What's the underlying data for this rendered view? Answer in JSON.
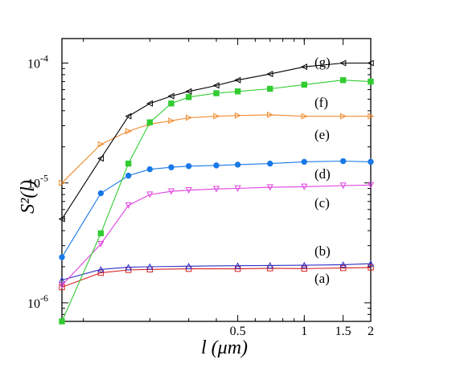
{
  "chart_data": {
    "type": "line",
    "title": "",
    "xlabel": "l (μm)",
    "ylabel": "S²(l)",
    "xscale": "log",
    "yscale": "log",
    "xlim": [
      0.08,
      2.0
    ],
    "ylim": [
      7e-07,
      0.00016
    ],
    "grid": false,
    "legend": "inline labels at right end of each curve",
    "xticks": [
      {
        "value": 0.5,
        "label": "0.5"
      },
      {
        "value": 1.0,
        "label": "1"
      },
      {
        "value": 1.5,
        "label": "1.5"
      },
      {
        "value": 2.0,
        "label": "2"
      }
    ],
    "yticks": [
      {
        "value": 1e-06,
        "label": "10",
        "exp": "-6"
      },
      {
        "value": 1e-05,
        "label": "10",
        "exp": "-5"
      },
      {
        "value": 0.0001,
        "label": "10",
        "exp": "-4"
      }
    ],
    "series": [
      {
        "name": "(a)",
        "color": "#d62020",
        "marker": "square",
        "x": [
          0.08,
          0.12,
          0.16,
          0.2,
          0.3,
          0.5,
          0.7,
          1.0,
          1.5,
          2.0
        ],
        "y": [
          1.35e-06,
          1.78e-06,
          1.88e-06,
          1.9e-06,
          1.92e-06,
          1.92e-06,
          1.94e-06,
          1.93e-06,
          1.95e-06,
          1.97e-06
        ]
      },
      {
        "name": "(b)",
        "color": "#3030c8",
        "marker": "triangle-up",
        "x": [
          0.08,
          0.12,
          0.16,
          0.2,
          0.3,
          0.5,
          0.7,
          1.0,
          1.5,
          2.0
        ],
        "y": [
          1.55e-06,
          1.9e-06,
          1.98e-06,
          2e-06,
          2.02e-06,
          2.04e-06,
          2.05e-06,
          2.06e-06,
          2.08e-06,
          2.12e-06
        ]
      },
      {
        "name": "(c)",
        "color": "#e040e0",
        "marker": "triangle-down",
        "x": [
          0.08,
          0.12,
          0.16,
          0.2,
          0.25,
          0.3,
          0.4,
          0.5,
          0.7,
          1.0,
          1.5,
          2.0
        ],
        "y": [
          1.4e-06,
          3.1e-06,
          6.5e-06,
          8e-06,
          8.5e-06,
          8.7e-06,
          8.9e-06,
          9e-06,
          9.2e-06,
          9.3e-06,
          9.5e-06,
          9.6e-06
        ]
      },
      {
        "name": "(d)",
        "color": "#1878e8",
        "marker": "circle",
        "x": [
          0.08,
          0.12,
          0.16,
          0.2,
          0.25,
          0.3,
          0.4,
          0.5,
          0.7,
          1.0,
          1.5,
          2.0
        ],
        "y": [
          2.4e-06,
          8.2e-06,
          1.15e-05,
          1.3e-05,
          1.35e-05,
          1.38e-05,
          1.4e-05,
          1.42e-05,
          1.45e-05,
          1.5e-05,
          1.52e-05,
          1.5e-05
        ]
      },
      {
        "name": "(e)",
        "color": "#f08c30",
        "marker": "triangle-right",
        "x": [
          0.08,
          0.12,
          0.16,
          0.2,
          0.25,
          0.3,
          0.4,
          0.5,
          0.7,
          1.0,
          1.5,
          2.0
        ],
        "y": [
          1e-05,
          2.1e-05,
          2.7e-05,
          3.1e-05,
          3.3e-05,
          3.5e-05,
          3.6e-05,
          3.65e-05,
          3.7e-05,
          3.6e-05,
          3.6e-05,
          3.6e-05
        ]
      },
      {
        "name": "(f)",
        "color": "#30cc30",
        "marker": "square",
        "x": [
          0.08,
          0.12,
          0.16,
          0.2,
          0.25,
          0.3,
          0.4,
          0.5,
          0.7,
          1.0,
          1.5,
          2.0
        ],
        "y": [
          7e-07,
          3.8e-06,
          1.45e-05,
          3.2e-05,
          4.6e-05,
          5.2e-05,
          5.6e-05,
          5.8e-05,
          6.1e-05,
          6.6e-05,
          7.2e-05,
          7e-05
        ]
      },
      {
        "name": "(g)",
        "color": "#000000",
        "marker": "triangle-left",
        "x": [
          0.08,
          0.12,
          0.16,
          0.2,
          0.25,
          0.3,
          0.4,
          0.5,
          0.7,
          1.0,
          1.5,
          2.0
        ],
        "y": [
          5e-06,
          1.6e-05,
          3.6e-05,
          4.6e-05,
          5.3e-05,
          5.8e-05,
          6.5e-05,
          7.2e-05,
          8.1e-05,
          9.3e-05,
          0.0001,
          0.0001
        ]
      }
    ],
    "curve_labels": [
      "(a)",
      "(b)",
      "(c)",
      "(d)",
      "(e)",
      "(f)",
      "(g)"
    ]
  }
}
